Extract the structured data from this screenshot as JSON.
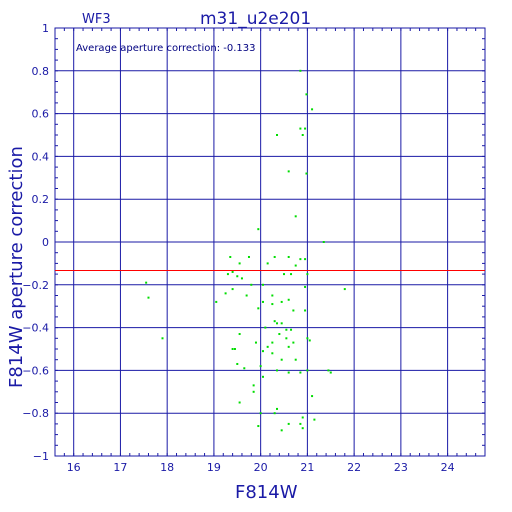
{
  "chart_data": {
    "type": "scatter",
    "title": "m31_u2e201",
    "chip_label": "WF3",
    "annotation": "Average aperture correction: -0.133",
    "xlabel": "F814W",
    "ylabel": "F814W aperture correction",
    "xlim": [
      15.6,
      24.8
    ],
    "ylim": [
      -1,
      1
    ],
    "x_ticks": [
      16,
      17,
      18,
      19,
      20,
      21,
      22,
      23,
      24
    ],
    "y_ticks": [
      -1,
      -0.8,
      -0.6,
      -0.4,
      -0.2,
      0,
      0.2,
      0.4,
      0.6,
      0.8,
      1
    ],
    "y_tick_labels": [
      "−1",
      "−0.8",
      "−0.6",
      "−0.4",
      "−0.2",
      "0",
      "0.2",
      "0.4",
      "0.6",
      "0.8",
      "1"
    ],
    "grid": true,
    "average_line": -0.133,
    "colors": {
      "axes": "#1a1aa6",
      "points": "#00dd00",
      "average": "#ff0000"
    },
    "points": [
      [
        20.85,
        0.8
      ],
      [
        20.98,
        0.69
      ],
      [
        21.1,
        0.62
      ],
      [
        20.95,
        0.53
      ],
      [
        20.85,
        0.53
      ],
      [
        20.9,
        0.5
      ],
      [
        20.35,
        0.5
      ],
      [
        20.6,
        0.33
      ],
      [
        20.98,
        0.32
      ],
      [
        20.75,
        0.12
      ],
      [
        19.95,
        0.06
      ],
      [
        21.35,
        0.0
      ],
      [
        19.35,
        -0.07
      ],
      [
        19.75,
        -0.07
      ],
      [
        20.3,
        -0.07
      ],
      [
        20.6,
        -0.07
      ],
      [
        20.85,
        -0.08
      ],
      [
        20.95,
        -0.08
      ],
      [
        19.55,
        -0.1
      ],
      [
        20.15,
        -0.1
      ],
      [
        20.75,
        -0.11
      ],
      [
        19.4,
        -0.14
      ],
      [
        19.3,
        -0.15
      ],
      [
        20.5,
        -0.15
      ],
      [
        20.65,
        -0.15
      ],
      [
        21.0,
        -0.15
      ],
      [
        19.5,
        -0.16
      ],
      [
        19.6,
        -0.17
      ],
      [
        17.55,
        -0.19
      ],
      [
        19.8,
        -0.2
      ],
      [
        20.05,
        -0.2
      ],
      [
        20.95,
        -0.21
      ],
      [
        21.8,
        -0.22
      ],
      [
        19.4,
        -0.22
      ],
      [
        19.25,
        -0.24
      ],
      [
        20.25,
        -0.25
      ],
      [
        19.7,
        -0.25
      ],
      [
        17.6,
        -0.26
      ],
      [
        20.6,
        -0.27
      ],
      [
        19.05,
        -0.28
      ],
      [
        20.05,
        -0.28
      ],
      [
        20.45,
        -0.28
      ],
      [
        20.25,
        -0.29
      ],
      [
        19.95,
        -0.31
      ],
      [
        20.7,
        -0.32
      ],
      [
        20.95,
        -0.32
      ],
      [
        20.3,
        -0.37
      ],
      [
        20.35,
        -0.38
      ],
      [
        20.45,
        -0.38
      ],
      [
        20.1,
        -0.4
      ],
      [
        20.55,
        -0.41
      ],
      [
        20.65,
        -0.41
      ],
      [
        20.4,
        -0.43
      ],
      [
        19.55,
        -0.43
      ],
      [
        20.55,
        -0.45
      ],
      [
        21.0,
        -0.45
      ],
      [
        21.05,
        -0.46
      ],
      [
        17.9,
        -0.45
      ],
      [
        19.9,
        -0.47
      ],
      [
        20.25,
        -0.47
      ],
      [
        20.7,
        -0.47
      ],
      [
        20.15,
        -0.49
      ],
      [
        20.6,
        -0.49
      ],
      [
        19.4,
        -0.5
      ],
      [
        19.45,
        -0.5
      ],
      [
        20.05,
        -0.51
      ],
      [
        20.25,
        -0.52
      ],
      [
        20.45,
        -0.55
      ],
      [
        20.75,
        -0.55
      ],
      [
        19.5,
        -0.57
      ],
      [
        20.0,
        -0.58
      ],
      [
        19.65,
        -0.59
      ],
      [
        20.35,
        -0.6
      ],
      [
        21.0,
        -0.6
      ],
      [
        21.45,
        -0.6
      ],
      [
        21.5,
        -0.61
      ],
      [
        20.6,
        -0.61
      ],
      [
        20.85,
        -0.61
      ],
      [
        20.05,
        -0.63
      ],
      [
        19.85,
        -0.67
      ],
      [
        19.55,
        -0.75
      ],
      [
        19.85,
        -0.7
      ],
      [
        21.1,
        -0.72
      ],
      [
        20.35,
        -0.78
      ],
      [
        20.3,
        -0.8
      ],
      [
        20.0,
        -0.8
      ],
      [
        20.9,
        -0.82
      ],
      [
        21.15,
        -0.83
      ],
      [
        20.6,
        -0.85
      ],
      [
        20.85,
        -0.85
      ],
      [
        19.95,
        -0.86
      ],
      [
        20.9,
        -0.87
      ],
      [
        20.45,
        -0.88
      ]
    ]
  }
}
